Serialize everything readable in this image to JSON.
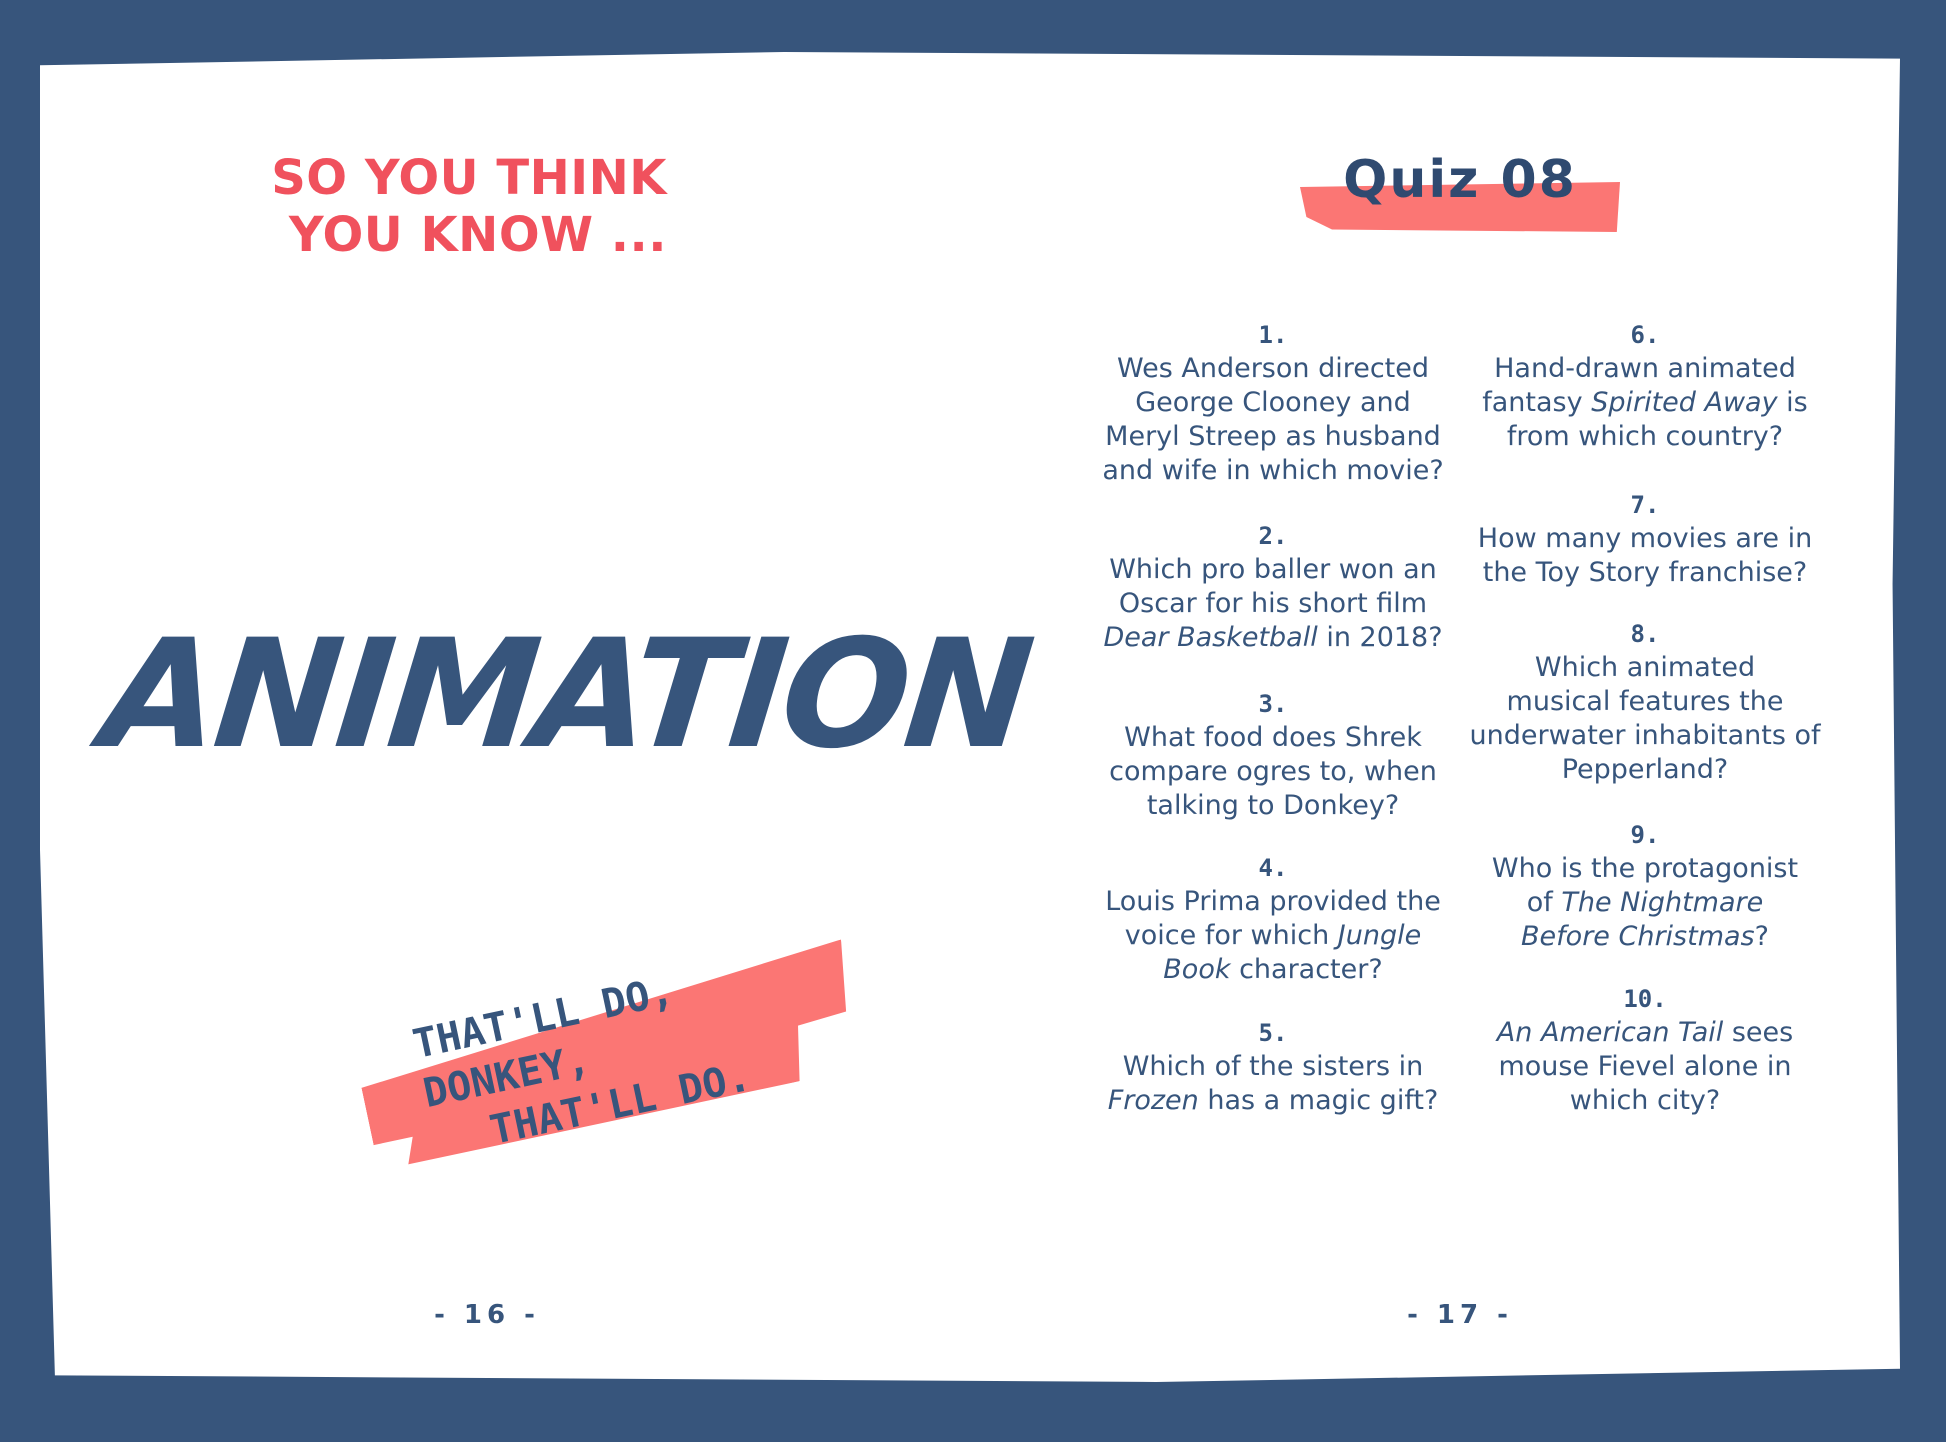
{
  "colors": {
    "border": "#37557c",
    "accent": "#f0515d",
    "brush": "#fb7674",
    "text": "#37557c"
  },
  "left": {
    "header_line1": "SO YOU THINK",
    "header_line2": "YOU KNOW ...",
    "title": "ANIMATION",
    "banner_line1": "THAT'LL DO, DONKEY,",
    "banner_line2": "THAT'LL DO.",
    "page_number": "- 16 -"
  },
  "right": {
    "quiz_title": "Quiz 08",
    "page_number": "- 17 -",
    "questions": [
      {
        "number": "1.",
        "lines": [
          [
            {
              "t": "Wes Anderson directed"
            }
          ],
          [
            {
              "t": "George Clooney and"
            }
          ],
          [
            {
              "t": "Meryl Streep as husband"
            }
          ],
          [
            {
              "t": "and wife in which movie?"
            }
          ]
        ]
      },
      {
        "number": "2.",
        "lines": [
          [
            {
              "t": "Which pro baller won an"
            }
          ],
          [
            {
              "t": "Oscar for his short film"
            }
          ],
          [
            {
              "t": "Dear Basketball",
              "i": true
            },
            {
              "t": " in 2018?"
            }
          ]
        ]
      },
      {
        "number": "3.",
        "lines": [
          [
            {
              "t": "What food does Shrek"
            }
          ],
          [
            {
              "t": "compare ogres to, when"
            }
          ],
          [
            {
              "t": "talking to Donkey?"
            }
          ]
        ]
      },
      {
        "number": "4.",
        "lines": [
          [
            {
              "t": "Louis Prima provided the"
            }
          ],
          [
            {
              "t": "voice for which "
            },
            {
              "t": "Jungle",
              "i": true
            }
          ],
          [
            {
              "t": "Book",
              "i": true
            },
            {
              "t": " character?"
            }
          ]
        ]
      },
      {
        "number": "5.",
        "lines": [
          [
            {
              "t": "Which of the sisters in"
            }
          ],
          [
            {
              "t": "Frozen",
              "i": true
            },
            {
              "t": " has a magic gift?"
            }
          ]
        ]
      },
      {
        "number": "6.",
        "lines": [
          [
            {
              "t": "Hand-drawn animated"
            }
          ],
          [
            {
              "t": "fantasy "
            },
            {
              "t": "Spirited Away",
              "i": true
            },
            {
              "t": " is"
            }
          ],
          [
            {
              "t": "from which country?"
            }
          ]
        ]
      },
      {
        "number": "7.",
        "lines": [
          [
            {
              "t": "How many movies are in"
            }
          ],
          [
            {
              "t": "the Toy Story franchise?"
            }
          ]
        ]
      },
      {
        "number": "8.",
        "lines": [
          [
            {
              "t": "Which animated"
            }
          ],
          [
            {
              "t": "musical features the"
            }
          ],
          [
            {
              "t": "underwater inhabitants of"
            }
          ],
          [
            {
              "t": "Pepperland?"
            }
          ]
        ]
      },
      {
        "number": "9.",
        "lines": [
          [
            {
              "t": "Who is the protagonist"
            }
          ],
          [
            {
              "t": "of "
            },
            {
              "t": "The Nightmare",
              "i": true
            }
          ],
          [
            {
              "t": "Before Christmas",
              "i": true
            },
            {
              "t": "?"
            }
          ]
        ]
      },
      {
        "number": "10.",
        "lines": [
          [
            {
              "t": "An American Tail",
              "i": true
            },
            {
              "t": " sees"
            }
          ],
          [
            {
              "t": "mouse Fievel alone in"
            }
          ],
          [
            {
              "t": "which city?"
            }
          ]
        ]
      }
    ]
  }
}
